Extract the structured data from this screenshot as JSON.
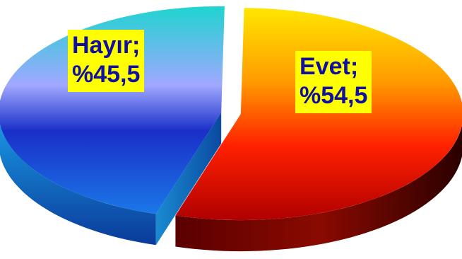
{
  "chart_data": {
    "type": "pie",
    "style": "3d-exploded",
    "title": "",
    "slices": [
      {
        "label": "Evet",
        "value": 54.5,
        "value_text": "%54,5",
        "label_text": "Evet;",
        "gradient": [
          "#ffe000",
          "#ff1a00",
          "#300000"
        ]
      },
      {
        "label": "Hayır",
        "value": 45.5,
        "value_text": "%45,5",
        "label_text": "Hayır;",
        "gradient": [
          "#20d0d0",
          "#9aa6ff",
          "#1030c0",
          "#1a6fe0"
        ]
      }
    ],
    "label_background": "#ffff00",
    "label_color": "#1010a0"
  }
}
